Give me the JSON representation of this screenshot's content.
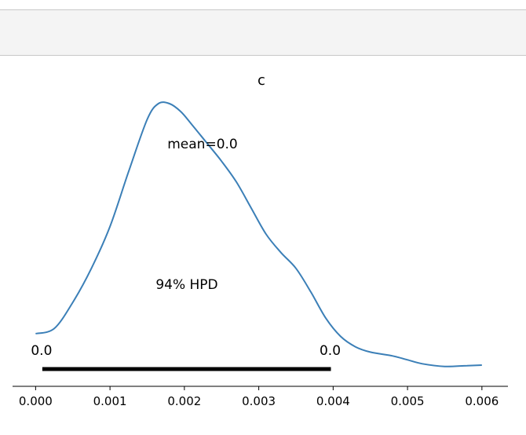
{
  "chart_data": {
    "type": "line",
    "title": "c",
    "xlabel": "",
    "ylabel": "",
    "xlim": [
      -0.00031,
      0.00635
    ],
    "ylim": [
      0,
      1
    ],
    "x_ticks": [
      "0.000",
      "0.001",
      "0.002",
      "0.003",
      "0.004",
      "0.005",
      "0.006"
    ],
    "x_tick_values": [
      0.0,
      0.001,
      0.002,
      0.003,
      0.004,
      0.005,
      0.006
    ],
    "series": [
      {
        "color": "#3b7fb7",
        "x": [
          0.0,
          0.00025,
          0.0005,
          0.00075,
          0.001,
          0.00125,
          0.0015,
          0.00165,
          0.0018,
          0.00195,
          0.0021,
          0.0023,
          0.0025,
          0.0027,
          0.0029,
          0.0031,
          0.0033,
          0.0035,
          0.0037,
          0.0039,
          0.0041,
          0.0043,
          0.0045,
          0.0048,
          0.005,
          0.0052,
          0.0055,
          0.0058,
          0.006
        ],
        "y": [
          0.12,
          0.14,
          0.24,
          0.37,
          0.53,
          0.74,
          0.94,
          1.0,
          1.0,
          0.97,
          0.92,
          0.85,
          0.78,
          0.7,
          0.6,
          0.5,
          0.43,
          0.37,
          0.28,
          0.18,
          0.11,
          0.07,
          0.05,
          0.035,
          0.02,
          0.005,
          -0.005,
          -0.002,
          0.0
        ]
      }
    ],
    "hpd": {
      "label": "94% HPD",
      "start": 9e-05,
      "end": 0.00397,
      "start_label": "0.0",
      "end_label": "0.0"
    },
    "mean_label": "mean=0.0",
    "grid": false,
    "legend": "none"
  }
}
